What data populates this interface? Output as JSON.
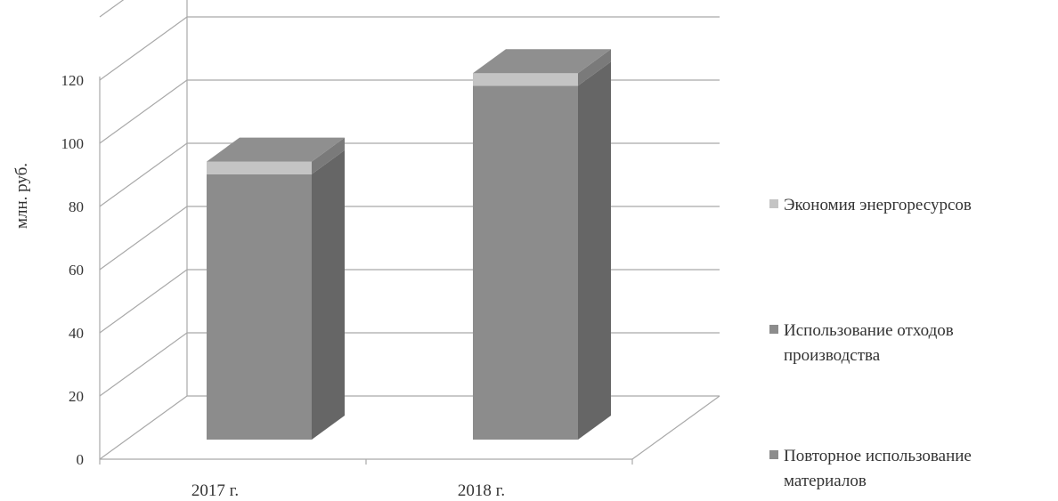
{
  "chart_data": {
    "type": "bar",
    "stacked": true,
    "style": "3d",
    "categories": [
      "2017 г.",
      "2018 г."
    ],
    "ylabel": "млн. руб.",
    "xlabel": "",
    "ylim": [
      0,
      120
    ],
    "yticks": [
      0,
      20,
      40,
      60,
      80,
      100,
      120
    ],
    "grid": true,
    "legend_position": "right",
    "series": [
      {
        "name": "Повторное использование материалов",
        "values": [
          0,
          0
        ],
        "color": "#8c8c8c"
      },
      {
        "name": "Использование отходов производства",
        "values": [
          84,
          112
        ],
        "color": "#8c8c8c"
      },
      {
        "name": "Экономия энергоресурсов",
        "values": [
          4,
          4
        ],
        "color": "#c4c4c4"
      }
    ]
  }
}
